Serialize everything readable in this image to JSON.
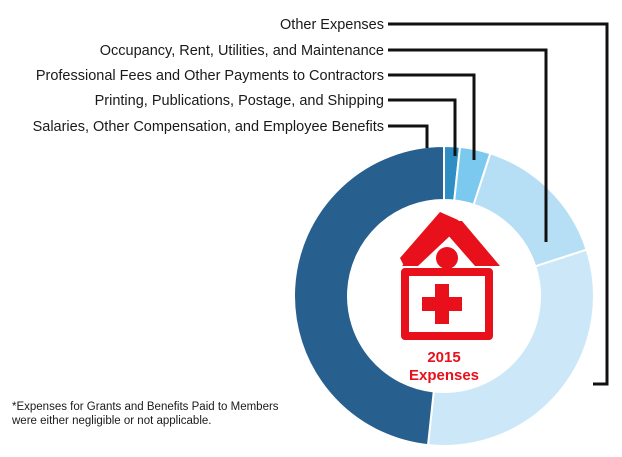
{
  "chart_data": {
    "type": "pie",
    "style": "donut",
    "title": "2015 Expenses",
    "title_lines": [
      "2015",
      "Expenses"
    ],
    "unit": "percent",
    "categories": [
      "Other Expenses",
      "Occupancy, Rent, Utilities, and Maintenance",
      "Professional Fees and Other Payments to Contractors",
      "Printing, Publications, Postage, and Shipping",
      "Salaries, Other Compensation, and Employee Benefits"
    ],
    "values": [
      31.7,
      15.0,
      3.3,
      1.7,
      48.3
    ],
    "colors": [
      "#cce8f8",
      "#b6def5",
      "#7cc9ef",
      "#2f8fc4",
      "#27608f"
    ],
    "legend": "left, leader lines",
    "center_icon": "hospital-building-icon",
    "accent_color": "#e8101a"
  },
  "footnote": "*Expenses for Grants and Benefits Paid to Members were either negligible or not applicable."
}
